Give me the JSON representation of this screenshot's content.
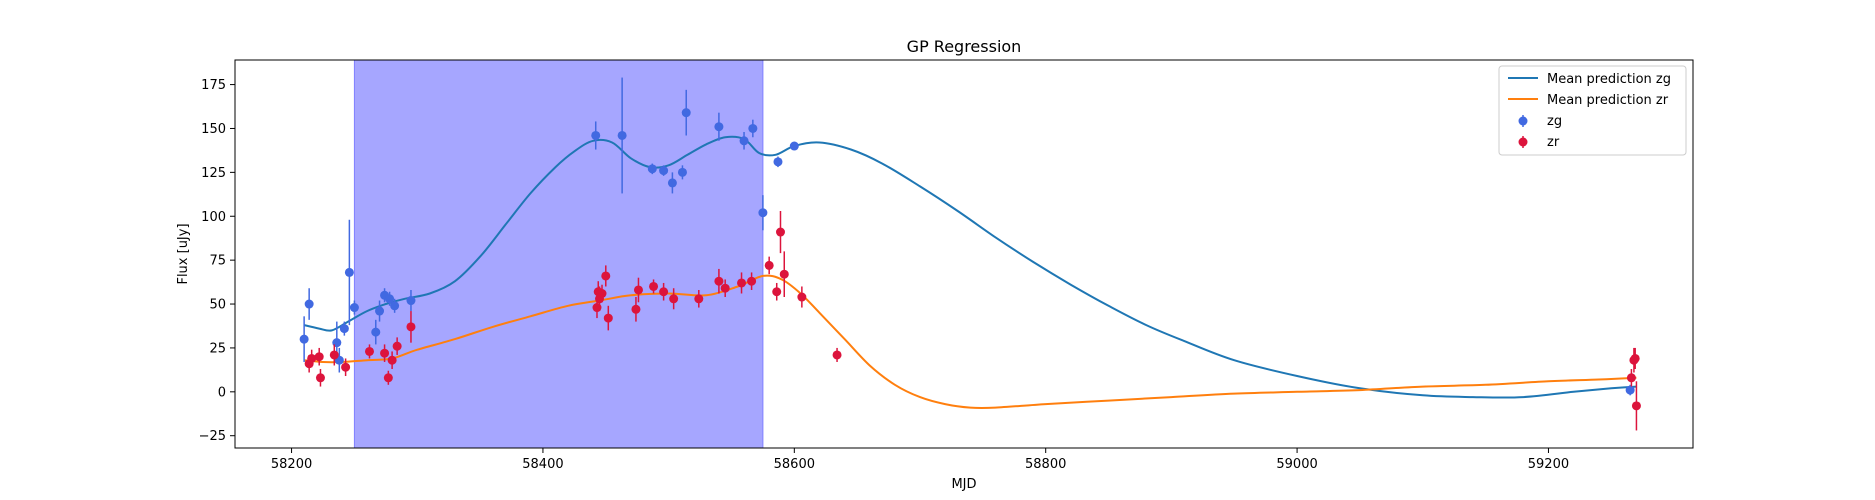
{
  "chart_data": {
    "type": "scatter",
    "title": "GP Regression",
    "xlabel": "MJD",
    "ylabel": "Flux [uJy]",
    "xlim": [
      58155,
      59315
    ],
    "ylim": [
      -32,
      189
    ],
    "xticks": [
      58200,
      58400,
      58600,
      58800,
      59000,
      59200
    ],
    "yticks": [
      -25,
      0,
      25,
      50,
      75,
      100,
      125,
      150,
      175
    ],
    "grid": false,
    "legend_position": "top-right",
    "highlight_span": {
      "x0": 58250,
      "x1": 58575,
      "color": "#a6a6ff"
    },
    "series": [
      {
        "name": "Mean prediction zg",
        "kind": "line",
        "color": "#1f77b4",
        "x": [
          58210,
          58222,
          58232,
          58245,
          58260,
          58275,
          58290,
          58310,
          58330,
          58350,
          58370,
          58390,
          58410,
          58425,
          58440,
          58455,
          58470,
          58485,
          58500,
          58515,
          58530,
          58545,
          58560,
          58572,
          58585,
          58600,
          58620,
          58645,
          58670,
          58700,
          58730,
          58760,
          58790,
          58820,
          58850,
          58880,
          58910,
          58950,
          59000,
          59050,
          59100,
          59140,
          59180,
          59220,
          59250,
          59270
        ],
        "y": [
          38,
          36,
          35,
          40,
          46,
          50,
          53,
          56,
          63,
          77,
          95,
          113,
          128,
          137,
          143,
          142,
          133,
          128,
          129,
          135,
          141,
          145,
          144,
          136,
          135,
          140,
          142,
          138,
          130,
          117,
          103,
          88,
          74,
          61,
          49,
          38,
          29,
          18,
          9,
          2,
          -2,
          -3,
          -3,
          0,
          2,
          3
        ]
      },
      {
        "name": "Mean prediction zr",
        "kind": "line",
        "color": "#ff7f0e",
        "x": [
          58210,
          58225,
          58240,
          58260,
          58280,
          58300,
          58330,
          58360,
          58390,
          58420,
          58445,
          58470,
          58500,
          58530,
          58555,
          58575,
          58590,
          58605,
          58620,
          58640,
          58660,
          58680,
          58700,
          58720,
          58740,
          58760,
          58800,
          58850,
          58900,
          58950,
          59000,
          59050,
          59100,
          59150,
          59200,
          59240,
          59270
        ],
        "y": [
          18,
          17,
          17,
          18,
          19,
          24,
          30,
          37,
          43,
          49,
          52,
          55,
          56,
          55,
          60,
          66,
          64,
          56,
          45,
          30,
          15,
          4,
          -3,
          -7,
          -9,
          -9,
          -7,
          -5,
          -3,
          -1,
          0,
          1,
          3,
          4,
          6,
          7,
          8
        ]
      },
      {
        "name": "zg",
        "kind": "errorbar",
        "color": "#4169e1",
        "points": [
          {
            "x": 58210,
            "y": 30,
            "err": 13
          },
          {
            "x": 58214,
            "y": 50,
            "err": 9
          },
          {
            "x": 58236,
            "y": 28,
            "err": 12
          },
          {
            "x": 58238,
            "y": 18,
            "err": 7
          },
          {
            "x": 58242,
            "y": 36,
            "err": 4
          },
          {
            "x": 58246,
            "y": 68,
            "err": 30
          },
          {
            "x": 58250,
            "y": 48,
            "err": 4
          },
          {
            "x": 58267,
            "y": 34,
            "err": 7
          },
          {
            "x": 58270,
            "y": 46,
            "err": 6
          },
          {
            "x": 58274,
            "y": 55,
            "err": 4
          },
          {
            "x": 58278,
            "y": 53,
            "err": 4
          },
          {
            "x": 58282,
            "y": 49,
            "err": 4
          },
          {
            "x": 58295,
            "y": 52,
            "err": 6
          },
          {
            "x": 58442,
            "y": 146,
            "err": 8
          },
          {
            "x": 58463,
            "y": 146,
            "err": 33
          },
          {
            "x": 58487,
            "y": 127,
            "err": 3
          },
          {
            "x": 58496,
            "y": 126,
            "err": 3
          },
          {
            "x": 58503,
            "y": 119,
            "err": 6
          },
          {
            "x": 58511,
            "y": 125,
            "err": 4
          },
          {
            "x": 58514,
            "y": 159,
            "err": 13
          },
          {
            "x": 58540,
            "y": 151,
            "err": 8
          },
          {
            "x": 58560,
            "y": 143,
            "err": 5
          },
          {
            "x": 58567,
            "y": 150,
            "err": 5
          },
          {
            "x": 58575,
            "y": 102,
            "err": 10
          },
          {
            "x": 58587,
            "y": 131,
            "err": 3
          },
          {
            "x": 58600,
            "y": 140,
            "err": 2
          },
          {
            "x": 59265,
            "y": 1,
            "err": 3
          }
        ]
      },
      {
        "name": "zr",
        "kind": "errorbar",
        "color": "#dc143c",
        "points": [
          {
            "x": 58214,
            "y": 16,
            "err": 5
          },
          {
            "x": 58216,
            "y": 19,
            "err": 5
          },
          {
            "x": 58222,
            "y": 20,
            "err": 5
          },
          {
            "x": 58223,
            "y": 8,
            "err": 5
          },
          {
            "x": 58234,
            "y": 21,
            "err": 6
          },
          {
            "x": 58243,
            "y": 14,
            "err": 5
          },
          {
            "x": 58262,
            "y": 23,
            "err": 4
          },
          {
            "x": 58274,
            "y": 22,
            "err": 5
          },
          {
            "x": 58277,
            "y": 8,
            "err": 4
          },
          {
            "x": 58280,
            "y": 18,
            "err": 5
          },
          {
            "x": 58284,
            "y": 26,
            "err": 5
          },
          {
            "x": 58295,
            "y": 37,
            "err": 9
          },
          {
            "x": 58443,
            "y": 48,
            "err": 6
          },
          {
            "x": 58444,
            "y": 57,
            "err": 6
          },
          {
            "x": 58445,
            "y": 53,
            "err": 7
          },
          {
            "x": 58447,
            "y": 56,
            "err": 5
          },
          {
            "x": 58450,
            "y": 66,
            "err": 6
          },
          {
            "x": 58452,
            "y": 42,
            "err": 7
          },
          {
            "x": 58474,
            "y": 47,
            "err": 7
          },
          {
            "x": 58476,
            "y": 58,
            "err": 7
          },
          {
            "x": 58488,
            "y": 60,
            "err": 4
          },
          {
            "x": 58496,
            "y": 57,
            "err": 5
          },
          {
            "x": 58504,
            "y": 53,
            "err": 6
          },
          {
            "x": 58524,
            "y": 53,
            "err": 5
          },
          {
            "x": 58540,
            "y": 63,
            "err": 7
          },
          {
            "x": 58545,
            "y": 59,
            "err": 5
          },
          {
            "x": 58558,
            "y": 62,
            "err": 6
          },
          {
            "x": 58566,
            "y": 63,
            "err": 5
          },
          {
            "x": 58580,
            "y": 72,
            "err": 5
          },
          {
            "x": 58586,
            "y": 57,
            "err": 5
          },
          {
            "x": 58589,
            "y": 91,
            "err": 12
          },
          {
            "x": 58592,
            "y": 67,
            "err": 13
          },
          {
            "x": 58606,
            "y": 54,
            "err": 6
          },
          {
            "x": 58634,
            "y": 21,
            "err": 4
          },
          {
            "x": 59266,
            "y": 8,
            "err": 5
          },
          {
            "x": 59268,
            "y": 18,
            "err": 7
          },
          {
            "x": 59269,
            "y": 19,
            "err": 6
          },
          {
            "x": 59270,
            "y": -8,
            "err": 14
          }
        ]
      }
    ]
  }
}
